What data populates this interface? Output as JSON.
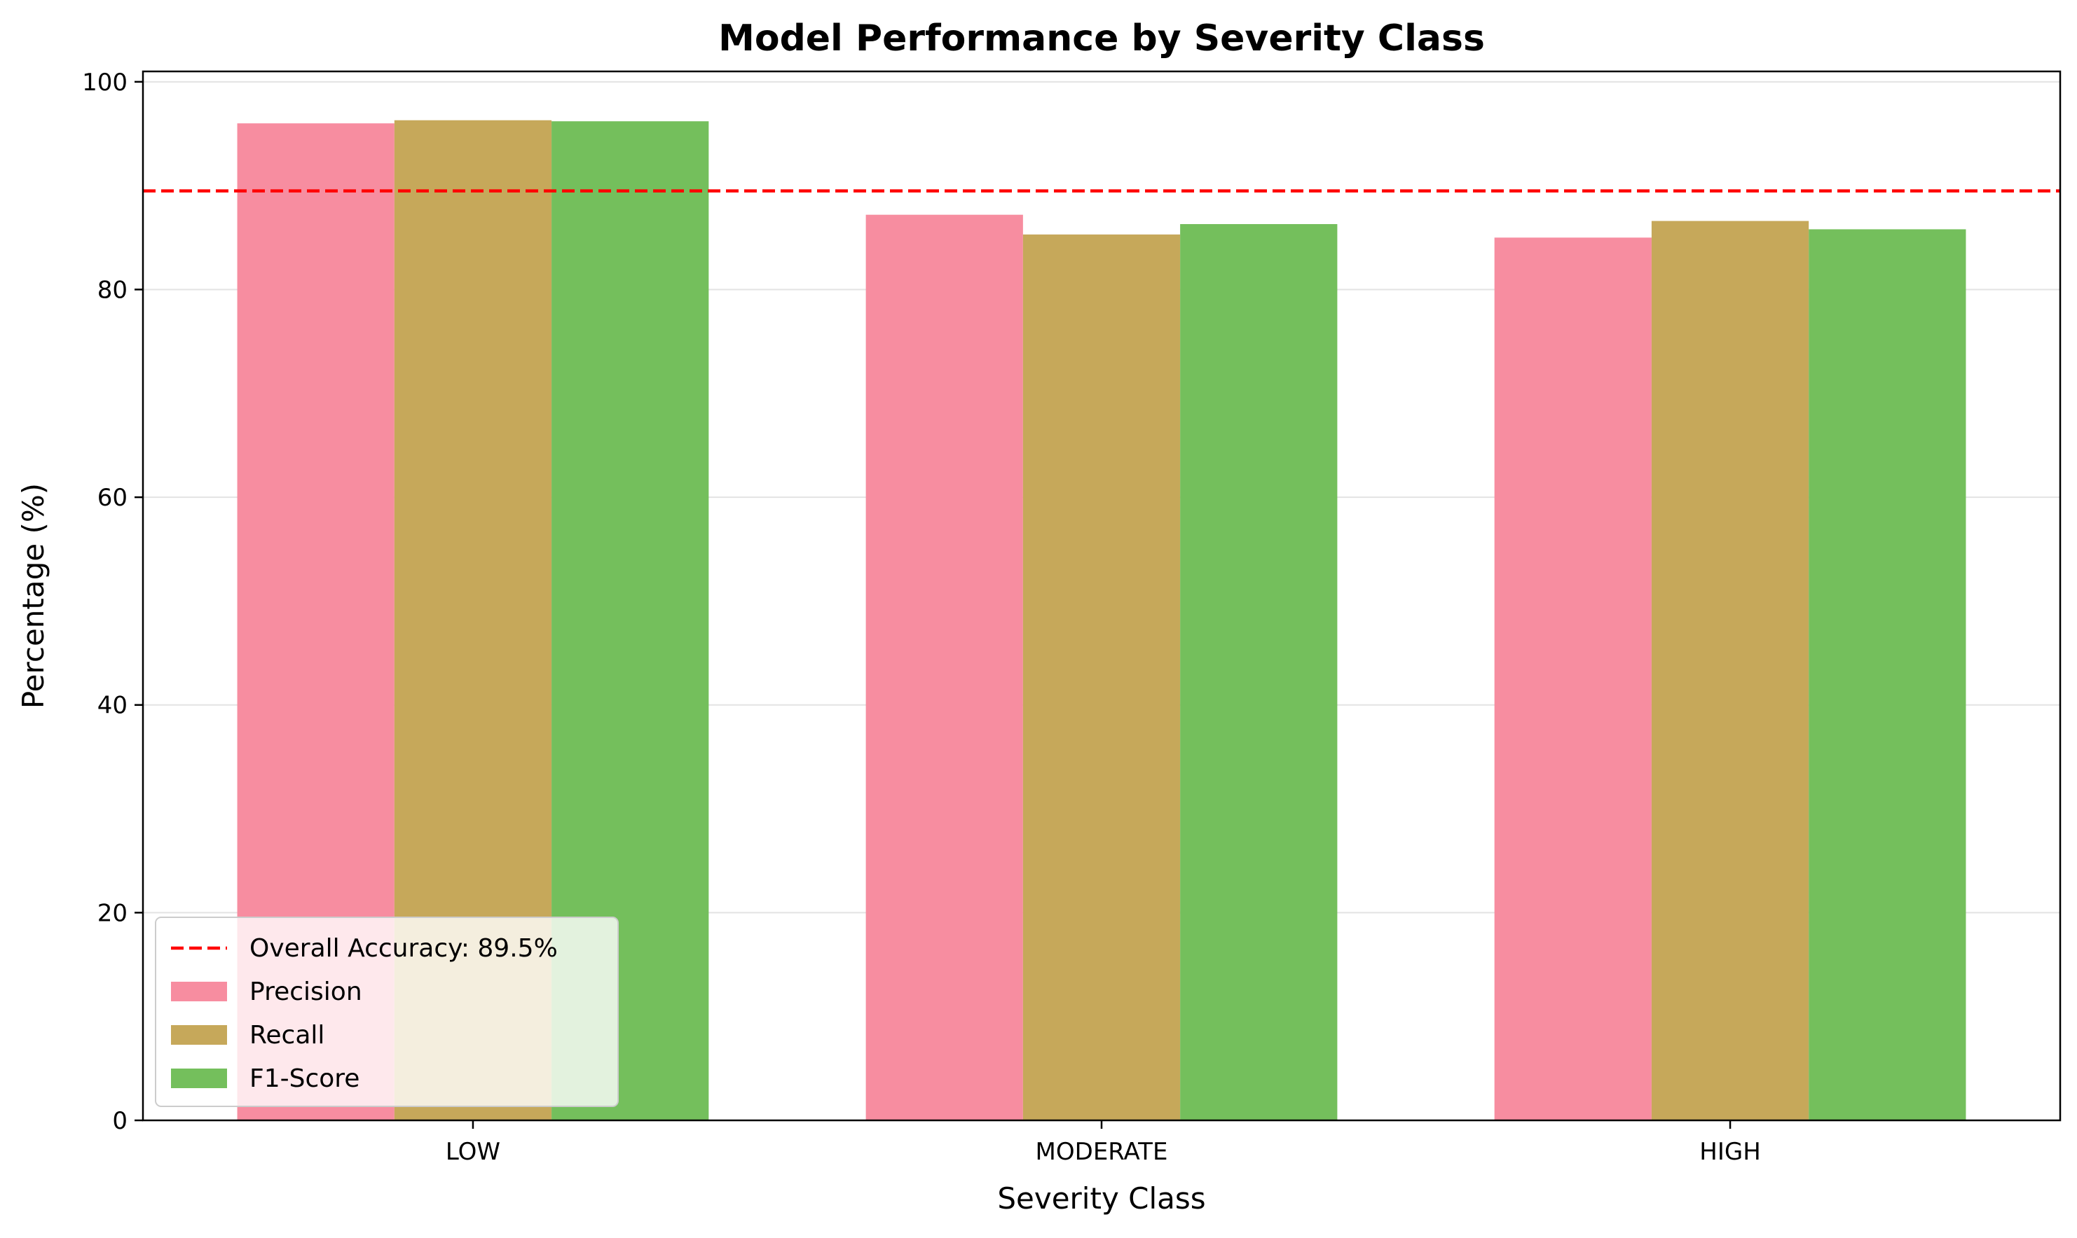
{
  "chart_data": {
    "type": "bar",
    "title": "Model Performance by Severity Class",
    "xlabel": "Severity Class",
    "ylabel": "Percentage (%)",
    "categories": [
      "LOW",
      "MODERATE",
      "HIGH"
    ],
    "series": [
      {
        "name": "Precision",
        "color": "#f78da0",
        "values": [
          96.0,
          87.2,
          85.0
        ]
      },
      {
        "name": "Recall",
        "color": "#c6a85a",
        "values": [
          96.3,
          85.3,
          86.6
        ]
      },
      {
        "name": "F1-Score",
        "color": "#74bf5c",
        "values": [
          96.2,
          86.3,
          85.8
        ]
      }
    ],
    "reference_line": {
      "label": "Overall Accuracy: 89.5%",
      "value": 89.5,
      "color": "#ff0000",
      "style": "dashed"
    },
    "ylim": [
      0,
      101
    ],
    "yticks": [
      0,
      20,
      40,
      60,
      80,
      100
    ],
    "grid": "y-axis, light",
    "legend_position": "lower-left"
  }
}
